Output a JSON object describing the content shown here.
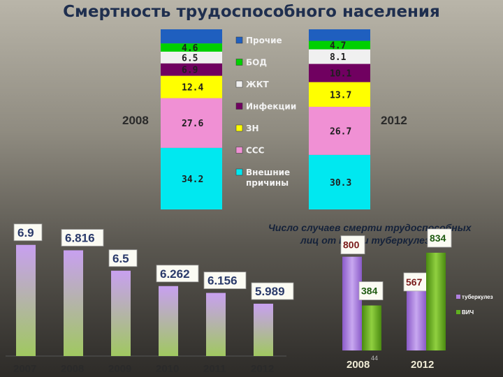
{
  "slide": {
    "title": "Смертность трудоспособного населения",
    "page_number": "44"
  },
  "chart_data": [
    {
      "type": "bar",
      "stacked": true,
      "categories": [
        "2008",
        "2012"
      ],
      "series": [
        {
          "name": "Внешние причины",
          "color": "#00e8f0",
          "values": [
            34.2,
            30.3
          ]
        },
        {
          "name": "ССС",
          "color": "#f090d4",
          "values": [
            27.6,
            26.7
          ]
        },
        {
          "name": "ЗН",
          "color": "#ffff00",
          "values": [
            12.4,
            13.7
          ]
        },
        {
          "name": "Инфекции",
          "color": "#700060",
          "values": [
            6.9,
            10.1
          ]
        },
        {
          "name": "ЖКТ",
          "color": "#f0f0f0",
          "values": [
            6.5,
            8.1
          ]
        },
        {
          "name": "БОД",
          "color": "#00d000",
          "values": [
            4.6,
            4.7
          ]
        },
        {
          "name": "Прочие",
          "color": "#1f5fbf",
          "values": [
            7.8,
            6.4
          ]
        }
      ],
      "data_labels": {
        "2008": [
          "34.2",
          "27.6",
          "12.4",
          "6.9",
          "6.5",
          "4.6"
        ],
        "2012": [
          "30.3",
          "26.7",
          "13.7",
          "10.1",
          "8.1",
          "4.7"
        ]
      },
      "legend_order": [
        "Прочие",
        "БОД",
        "ЖКТ",
        "Инфекции",
        "ЗН",
        "ССС",
        "Внешние причины"
      ],
      "legend_placement": "center",
      "ylim": [
        0,
        100
      ]
    },
    {
      "type": "bar",
      "categories": [
        "2007",
        "2008",
        "2009",
        "2010",
        "2011",
        "2012"
      ],
      "values": [
        6.9,
        6.816,
        6.5,
        6.262,
        6.156,
        5.989
      ],
      "value_labels": [
        "6.9",
        "6.816",
        "6.5",
        "6.262",
        "6.156",
        "5.989"
      ],
      "bar_color_top": "#c8a0f0",
      "bar_color_bottom": "#a0c860",
      "ylim": [
        5.2,
        7.2
      ]
    },
    {
      "type": "bar",
      "title": "Число случаев смерти трудоспособных лиц от ВИЧ и туберкулеза",
      "categories": [
        "2008",
        "2012"
      ],
      "series": [
        {
          "name": "туберкулез",
          "color": "#b080e0",
          "values": [
            800,
            567
          ]
        },
        {
          "name": "ВИЧ",
          "color": "#60b020",
          "values": [
            384,
            834
          ]
        }
      ],
      "value_labels": {
        "туберкулез": [
          "800",
          "567"
        ],
        "ВИЧ": [
          "384",
          "834"
        ]
      },
      "legend_placement": "right",
      "ylim": [
        0,
        1000
      ]
    }
  ]
}
